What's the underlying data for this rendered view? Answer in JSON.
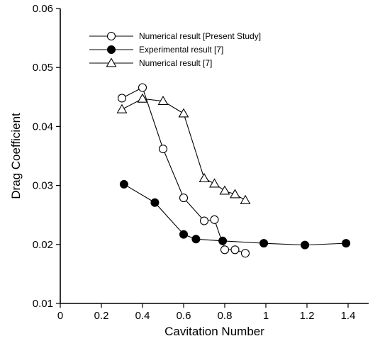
{
  "chart_data": {
    "type": "line",
    "xlabel": "Cavitation Number",
    "ylabel": "Drag Coefficient",
    "xlim": [
      0,
      1.5
    ],
    "ylim": [
      0.01,
      0.06
    ],
    "x_ticks": [
      "0",
      "0.2",
      "0.4",
      "0.6",
      "0.8",
      "1",
      "1.2",
      "1.4"
    ],
    "x_tick_values": [
      0,
      0.2,
      0.4,
      0.6,
      0.8,
      1.0,
      1.2,
      1.4
    ],
    "y_ticks": [
      "0.01",
      "0.02",
      "0.03",
      "0.04",
      "0.05",
      "0.06"
    ],
    "y_tick_values": [
      0.01,
      0.02,
      0.03,
      0.04,
      0.05,
      0.06
    ],
    "grid": false,
    "legend_position": "top-left",
    "series": [
      {
        "name": "Numerical result [Present Study]",
        "marker": "open-circle",
        "x": [
          0.3,
          0.4,
          0.5,
          0.6,
          0.7,
          0.75,
          0.8,
          0.85,
          0.9
        ],
        "y": [
          0.0448,
          0.0466,
          0.0362,
          0.0279,
          0.024,
          0.0242,
          0.0191,
          0.0191,
          0.0185
        ]
      },
      {
        "name": "Experimental result [7]",
        "marker": "filled-circle",
        "x": [
          0.31,
          0.46,
          0.6,
          0.66,
          0.79,
          0.99,
          1.19,
          1.39
        ],
        "y": [
          0.0302,
          0.0271,
          0.0217,
          0.0209,
          0.0206,
          0.0202,
          0.0199,
          0.0202
        ]
      },
      {
        "name": "Numerical result [7]",
        "marker": "open-triangle",
        "x": [
          0.3,
          0.4,
          0.5,
          0.6,
          0.7,
          0.75,
          0.8,
          0.85,
          0.9
        ],
        "y": [
          0.0429,
          0.0447,
          0.0443,
          0.0422,
          0.0312,
          0.0303,
          0.0291,
          0.0285,
          0.0275
        ]
      }
    ]
  }
}
